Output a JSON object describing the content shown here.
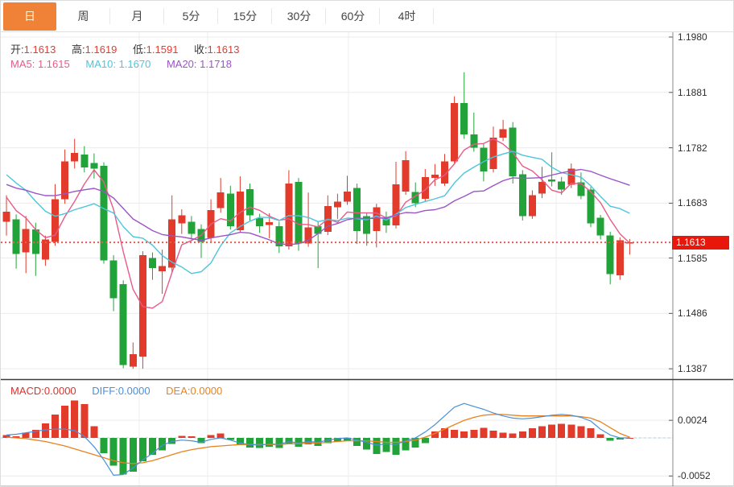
{
  "toolbar": {
    "tabs": [
      {
        "label": "日",
        "active": true
      },
      {
        "label": "周",
        "active": false
      },
      {
        "label": "月",
        "active": false
      },
      {
        "label": "5分",
        "active": false
      },
      {
        "label": "15分",
        "active": false
      },
      {
        "label": "30分",
        "active": false
      },
      {
        "label": "60分",
        "active": false
      },
      {
        "label": "4时",
        "active": false
      }
    ]
  },
  "ohlc_legend": {
    "open_label": "开:",
    "open": "1.1613",
    "high_label": "高:",
    "high": "1.1619",
    "low_label": "低:",
    "low": "1.1591",
    "close_label": "收:",
    "close": "1.1613"
  },
  "ma_legend": {
    "ma5_label": "MA5:",
    "ma5": "1.1615",
    "ma10_label": "MA10:",
    "ma10": "1.1670",
    "ma20_label": "MA20:",
    "ma20": "1.1718"
  },
  "macd_legend": {
    "macd_label": "MACD:",
    "macd": "0.0000",
    "diff_label": "DIFF:",
    "diff": "0.0000",
    "dea_label": "DEA:",
    "dea": "0.0000"
  },
  "price_axis": {
    "ticks": [
      "1.1980",
      "1.1881",
      "1.1782",
      "1.1683",
      "1.1585",
      "1.1486",
      "1.1387"
    ],
    "current": "1.1613"
  },
  "macd_axis": {
    "ticks": [
      "0.0024",
      "-0.0052"
    ]
  },
  "colors": {
    "up": "#e23b2c",
    "down": "#21a33a",
    "ma5": "#e85a8a",
    "ma10": "#4cc6da",
    "ma20": "#9b55c8",
    "diff_line": "#4a90d9",
    "dea_line": "#e8821e",
    "ohlc_value": "#e8392f",
    "dotted_price": "#f05a4a",
    "price_box_bg": "#e8170b",
    "active_tab_bg": "#ef8236",
    "grid": "#ececec",
    "axis_line": "#888888",
    "divider": "#3c3c3c"
  },
  "chart_data": [
    {
      "type": "candlestick",
      "title": "Daily candlestick chart with MA5/MA10/MA20 overlays",
      "y_axis_ticks": [
        1.198,
        1.1881,
        1.1782,
        1.1683,
        1.1585,
        1.1486,
        1.1387
      ],
      "current_price": 1.1613,
      "ma_periods": [
        5,
        10,
        20
      ],
      "ma_current": {
        "ma5": 1.1615,
        "ma10": 1.167,
        "ma20": 1.1718
      },
      "prehistory_closes": [
        1.172,
        1.1712,
        1.1704,
        1.1698,
        1.1694,
        1.169,
        1.1688,
        1.169,
        1.1692,
        1.17,
        1.174,
        1.1768,
        1.1788,
        1.1795,
        1.178,
        1.1712,
        1.1702,
        1.1696,
        1.169
      ],
      "ohlc": [
        [
          1.165,
          1.1697,
          1.1625,
          1.1668
        ],
        [
          1.1654,
          1.1663,
          1.1566,
          1.1592
        ],
        [
          1.1595,
          1.166,
          1.1558,
          1.1637
        ],
        [
          1.1636,
          1.1648,
          1.1553,
          1.1592
        ],
        [
          1.1582,
          1.1625,
          1.1571,
          1.1618
        ],
        [
          1.1614,
          1.1717,
          1.1607,
          1.169
        ],
        [
          1.169,
          1.1779,
          1.1682,
          1.1758
        ],
        [
          1.1758,
          1.1798,
          1.1745,
          1.1773
        ],
        [
          1.177,
          1.1785,
          1.1738,
          1.1747
        ],
        [
          1.1755,
          1.1772,
          1.1727,
          1.1745
        ],
        [
          1.175,
          1.1756,
          1.1575,
          1.1581
        ],
        [
          1.1581,
          1.159,
          1.149,
          1.1513
        ],
        [
          1.1538,
          1.1545,
          1.1388,
          1.1394
        ],
        [
          1.1391,
          1.1434,
          1.1387,
          1.1413
        ],
        [
          1.1409,
          1.1597,
          1.1387,
          1.159
        ],
        [
          1.1585,
          1.1595,
          1.1546,
          1.1567
        ],
        [
          1.1561,
          1.16,
          1.1521,
          1.1571
        ],
        [
          1.1568,
          1.1697,
          1.156,
          1.1654
        ],
        [
          1.1647,
          1.1672,
          1.1628,
          1.1661
        ],
        [
          1.165,
          1.166,
          1.1618,
          1.1628
        ],
        [
          1.1637,
          1.1645,
          1.1585,
          1.1614
        ],
        [
          1.1621,
          1.169,
          1.1612,
          1.1671
        ],
        [
          1.1674,
          1.1728,
          1.1666,
          1.1702
        ],
        [
          1.17,
          1.1714,
          1.1636,
          1.1642
        ],
        [
          1.1635,
          1.1731,
          1.163,
          1.1704
        ],
        [
          1.1708,
          1.1718,
          1.1652,
          1.1661
        ],
        [
          1.1656,
          1.1664,
          1.163,
          1.1642
        ],
        [
          1.1644,
          1.1665,
          1.162,
          1.1649
        ],
        [
          1.1642,
          1.165,
          1.1594,
          1.1606
        ],
        [
          1.1606,
          1.1742,
          1.16,
          1.1718
        ],
        [
          1.1721,
          1.1728,
          1.1598,
          1.1611
        ],
        [
          1.1611,
          1.1702,
          1.1605,
          1.164
        ],
        [
          1.1642,
          1.165,
          1.1567,
          1.1628
        ],
        [
          1.1632,
          1.1697,
          1.1626,
          1.1678
        ],
        [
          1.1676,
          1.17,
          1.1655,
          1.1686
        ],
        [
          1.1686,
          1.1732,
          1.168,
          1.1704
        ],
        [
          1.171,
          1.1718,
          1.161,
          1.1633
        ],
        [
          1.166,
          1.1665,
          1.1607,
          1.1628
        ],
        [
          1.1633,
          1.1682,
          1.1604,
          1.1676
        ],
        [
          1.1656,
          1.1668,
          1.163,
          1.1643
        ],
        [
          1.1643,
          1.1757,
          1.1638,
          1.1717
        ],
        [
          1.1704,
          1.1776,
          1.1698,
          1.176
        ],
        [
          1.1703,
          1.172,
          1.1676,
          1.1683
        ],
        [
          1.1691,
          1.1744,
          1.1686,
          1.173
        ],
        [
          1.1728,
          1.1753,
          1.1714,
          1.1734
        ],
        [
          1.1718,
          1.1771,
          1.1714,
          1.1758
        ],
        [
          1.1758,
          1.1874,
          1.1752,
          1.1862
        ],
        [
          1.1862,
          1.1917,
          1.1798,
          1.1806
        ],
        [
          1.1806,
          1.1845,
          1.1775,
          1.1782
        ],
        [
          1.1782,
          1.179,
          1.1722,
          1.174
        ],
        [
          1.1744,
          1.182,
          1.1738,
          1.18
        ],
        [
          1.18,
          1.1832,
          1.1794,
          1.1815
        ],
        [
          1.1818,
          1.1828,
          1.1718,
          1.1731
        ],
        [
          1.1735,
          1.1742,
          1.1652,
          1.166
        ],
        [
          1.166,
          1.1706,
          1.1655,
          1.1697
        ],
        [
          1.17,
          1.1748,
          1.1692,
          1.1721
        ],
        [
          1.1725,
          1.1774,
          1.1713,
          1.1722
        ],
        [
          1.1722,
          1.173,
          1.1698,
          1.1707
        ],
        [
          1.1716,
          1.1754,
          1.171,
          1.1745
        ],
        [
          1.172,
          1.1738,
          1.169,
          1.1696
        ],
        [
          1.1707,
          1.1712,
          1.164,
          1.1647
        ],
        [
          1.1657,
          1.1662,
          1.1618,
          1.1625
        ],
        [
          1.1625,
          1.1632,
          1.1538,
          1.1556
        ],
        [
          1.1554,
          1.1622,
          1.1546,
          1.1617
        ],
        [
          1.1613,
          1.1619,
          1.1591,
          1.1613
        ]
      ]
    },
    {
      "type": "bar",
      "title": "MACD(12,26,9) histogram with DIFF/DEA lines",
      "y_axis_ticks": [
        0.0024,
        -0.0052
      ],
      "current": {
        "macd": 0.0,
        "diff": 0.0,
        "dea": 0.0
      },
      "hist": [
        0.0004,
        0.0002,
        0.0007,
        0.0011,
        0.002,
        0.0032,
        0.0044,
        0.0051,
        0.0046,
        0.0016,
        -0.0021,
        -0.0038,
        -0.005,
        -0.0046,
        -0.0032,
        -0.0023,
        -0.0017,
        -0.0008,
        0.0003,
        0.0002,
        -0.0007,
        0.0004,
        0.0006,
        -0.0003,
        -0.001,
        -0.0013,
        -0.0014,
        -0.0012,
        -0.0014,
        -0.0009,
        -0.0012,
        -0.0009,
        -0.0011,
        -0.0007,
        -0.0005,
        -0.0004,
        -0.0011,
        -0.0016,
        -0.0022,
        -0.0019,
        -0.0023,
        -0.0017,
        -0.0013,
        -0.0007,
        0.0009,
        0.0013,
        0.0011,
        0.0009,
        0.0011,
        0.0014,
        0.001,
        0.0007,
        0.0006,
        0.0009,
        0.0013,
        0.0016,
        0.0018,
        0.0019,
        0.0018,
        0.0016,
        0.0013,
        0.0005,
        -0.0004,
        -0.0002,
        0.0
      ],
      "diff": [
        0.0004,
        0.0005,
        0.0007,
        0.0009,
        0.0011,
        0.0012,
        0.0012,
        0.001,
        0.0002,
        -0.0012,
        -0.003,
        -0.0051,
        -0.005,
        -0.0041,
        -0.003,
        -0.0021,
        -0.001,
        -0.0005,
        -0.0003,
        -0.0004,
        -0.0006,
        -0.0002,
        0.0,
        -0.0003,
        -0.0007,
        -0.0009,
        -0.001,
        -0.0008,
        -0.0009,
        -0.0005,
        -0.0007,
        -0.0005,
        -0.0006,
        -0.0003,
        -0.0001,
        0.0,
        -0.0003,
        -0.0006,
        -0.001,
        -0.0008,
        -0.0009,
        -0.0004,
        0.0,
        0.0008,
        0.0018,
        0.003,
        0.0042,
        0.0047,
        0.0043,
        0.0039,
        0.0034,
        0.003,
        0.0027,
        0.0026,
        0.0027,
        0.0029,
        0.0031,
        0.0032,
        0.0031,
        0.0028,
        0.0023,
        0.0012,
        0.0004,
        0.0,
        0.0
      ],
      "dea": [
        0.0001,
        0.0,
        -0.0001,
        -0.0003,
        -0.0005,
        -0.0008,
        -0.0011,
        -0.0015,
        -0.0019,
        -0.0023,
        -0.0027,
        -0.0031,
        -0.0034,
        -0.0035,
        -0.0034,
        -0.0031,
        -0.0027,
        -0.0023,
        -0.0019,
        -0.0016,
        -0.0014,
        -0.0012,
        -0.0011,
        -0.001,
        -0.0009,
        -0.0009,
        -0.0009,
        -0.0009,
        -0.0009,
        -0.0008,
        -0.0008,
        -0.0007,
        -0.0007,
        -0.0006,
        -0.0005,
        -0.0004,
        -0.0004,
        -0.0004,
        -0.0005,
        -0.0006,
        -0.0006,
        -0.0005,
        -0.0003,
        0.0001,
        0.0006,
        0.0012,
        0.0018,
        0.0024,
        0.0028,
        0.0031,
        0.0032,
        0.0032,
        0.0031,
        0.003,
        0.003,
        0.003,
        0.003,
        0.003,
        0.003,
        0.0029,
        0.0027,
        0.0022,
        0.0014,
        0.0006,
        0.0001
      ]
    }
  ]
}
